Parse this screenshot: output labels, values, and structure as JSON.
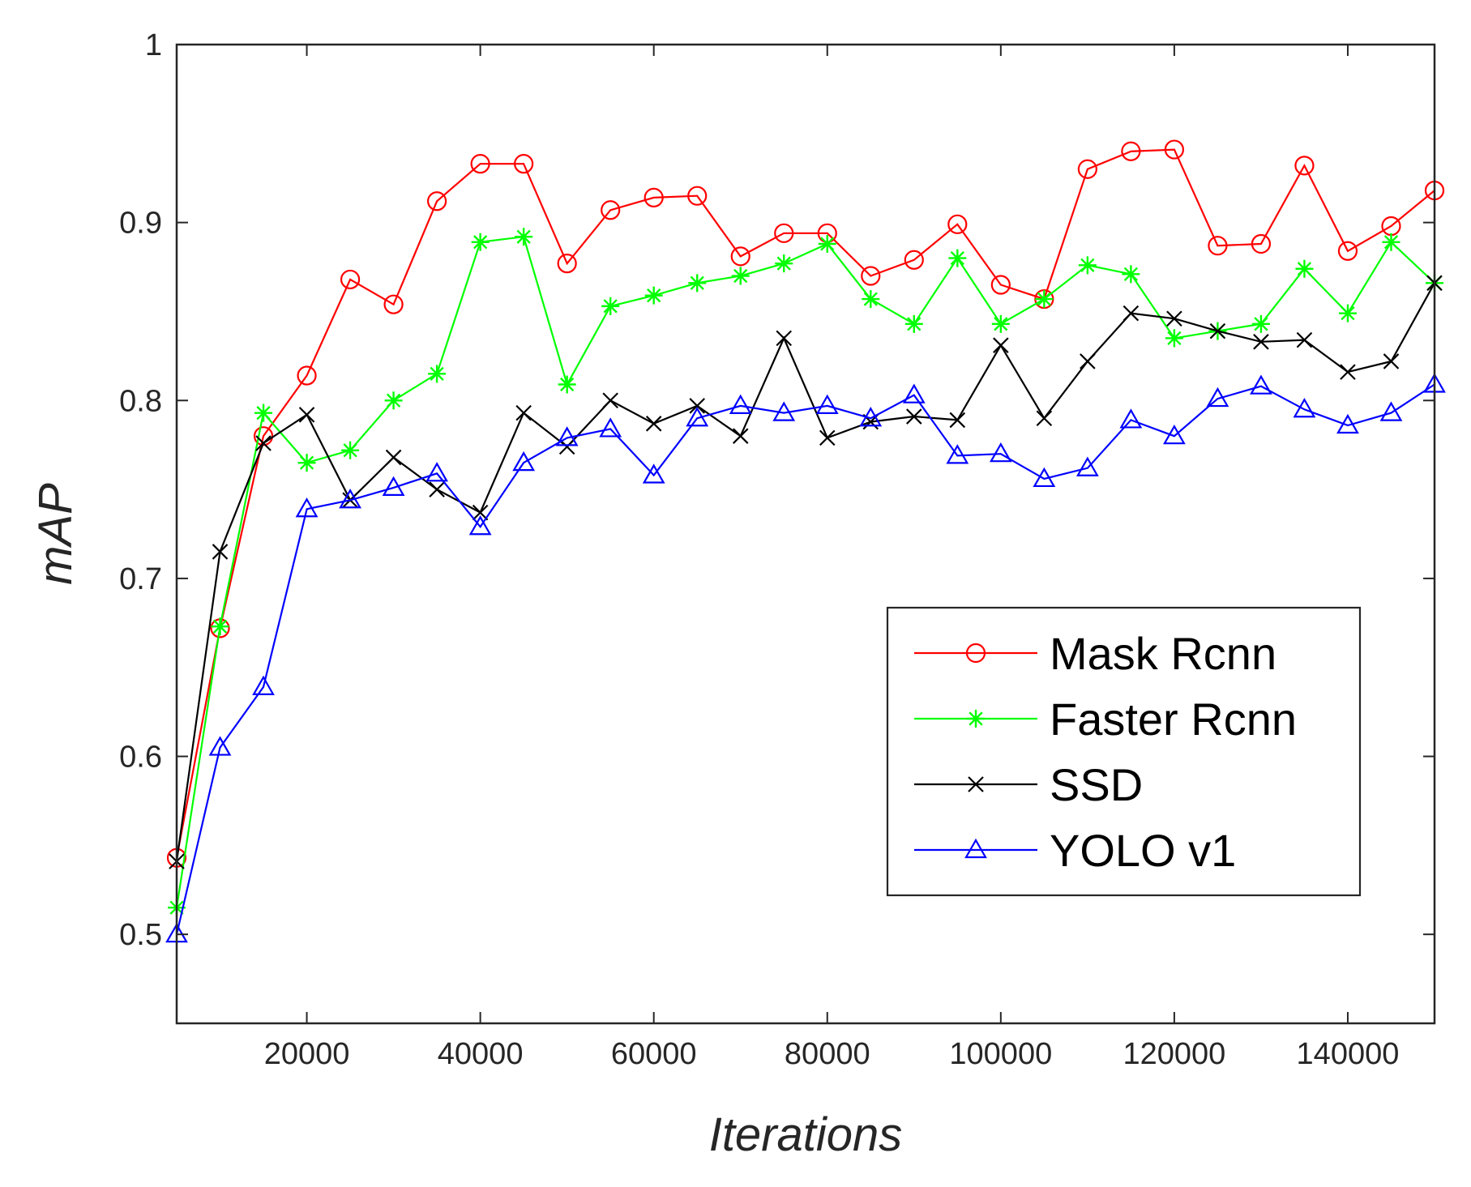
{
  "chart_data": {
    "type": "line",
    "title": "",
    "xlabel": "Iterations",
    "ylabel": "mAP",
    "xlim": [
      5000,
      150000
    ],
    "ylim": [
      0.45,
      1.0
    ],
    "xticks": [
      20000,
      40000,
      60000,
      80000,
      100000,
      120000,
      140000
    ],
    "xtick_labels": [
      "20000",
      "40000",
      "60000",
      "80000",
      "100000",
      "120000",
      "140000"
    ],
    "yticks": [
      0.5,
      0.6,
      0.7,
      0.8,
      0.9,
      1.0
    ],
    "ytick_labels": [
      "0.5",
      "0.6",
      "0.7",
      "0.8",
      "0.9",
      "1"
    ],
    "grid": false,
    "legend_position": "lower-right",
    "x": [
      5000,
      10000,
      15000,
      20000,
      25000,
      30000,
      35000,
      40000,
      45000,
      50000,
      55000,
      60000,
      65000,
      70000,
      75000,
      80000,
      85000,
      90000,
      95000,
      100000,
      105000,
      110000,
      115000,
      120000,
      125000,
      130000,
      135000,
      140000,
      145000,
      150000
    ],
    "series": [
      {
        "name": "Mask Rcnn",
        "color": "#ff0000",
        "marker": "circle",
        "values": [
          0.543,
          0.672,
          0.78,
          0.814,
          0.868,
          0.854,
          0.912,
          0.933,
          0.933,
          0.877,
          0.907,
          0.914,
          0.915,
          0.881,
          0.894,
          0.894,
          0.87,
          0.879,
          0.899,
          0.865,
          0.857,
          0.93,
          0.94,
          0.941,
          0.887,
          0.888,
          0.932,
          0.884,
          0.898,
          0.918
        ]
      },
      {
        "name": "Faster Rcnn",
        "color": "#00ff00",
        "marker": "asterisk",
        "values": [
          0.515,
          0.673,
          0.793,
          0.765,
          0.772,
          0.8,
          0.815,
          0.889,
          0.892,
          0.809,
          0.853,
          0.859,
          0.866,
          0.87,
          0.877,
          0.888,
          0.857,
          0.843,
          0.88,
          0.843,
          0.857,
          0.876,
          0.871,
          0.835,
          0.839,
          0.843,
          0.874,
          0.849,
          0.889,
          0.866
        ]
      },
      {
        "name": "SSD",
        "color": "#000000",
        "marker": "x",
        "values": [
          0.541,
          0.715,
          0.776,
          0.792,
          0.744,
          0.768,
          0.75,
          0.737,
          0.793,
          0.774,
          0.8,
          0.787,
          0.797,
          0.78,
          0.835,
          0.779,
          0.788,
          0.791,
          0.789,
          0.831,
          0.79,
          0.822,
          0.849,
          0.846,
          0.839,
          0.833,
          0.834,
          0.816,
          0.822,
          0.866
        ]
      },
      {
        "name": "YOLO v1",
        "color": "#0000ff",
        "marker": "triangle",
        "values": [
          0.5,
          0.605,
          0.639,
          0.739,
          0.744,
          0.751,
          0.759,
          0.729,
          0.765,
          0.779,
          0.784,
          0.758,
          0.79,
          0.797,
          0.793,
          0.797,
          0.79,
          0.803,
          0.769,
          0.77,
          0.756,
          0.762,
          0.789,
          0.78,
          0.801,
          0.808,
          0.795,
          0.786,
          0.793,
          0.809
        ]
      }
    ]
  }
}
